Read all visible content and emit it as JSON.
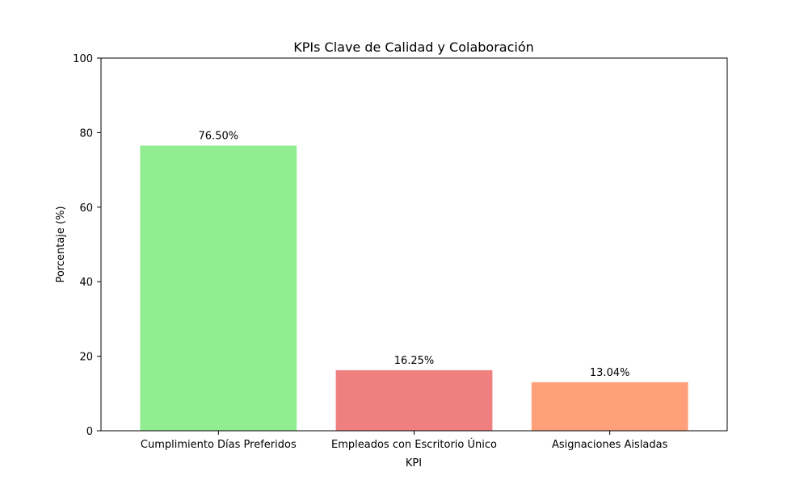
{
  "chart_data": {
    "type": "bar",
    "title": "KPIs Clave de Calidad y Colaboración",
    "xlabel": "KPI",
    "ylabel": "Porcentaje (%)",
    "categories": [
      "Cumplimiento Días Preferidos",
      "Empleados con Escritorio Único",
      "Asignaciones Aisladas"
    ],
    "values": [
      76.5,
      16.25,
      13.04
    ],
    "value_labels": [
      "76.50%",
      "16.25%",
      "13.04%"
    ],
    "colors": [
      "#90ee90",
      "#f08080",
      "#ffa07a"
    ],
    "ylim": [
      0,
      100
    ],
    "yticks": [
      0,
      20,
      40,
      60,
      80,
      100
    ],
    "grid": false,
    "legend": "none"
  }
}
